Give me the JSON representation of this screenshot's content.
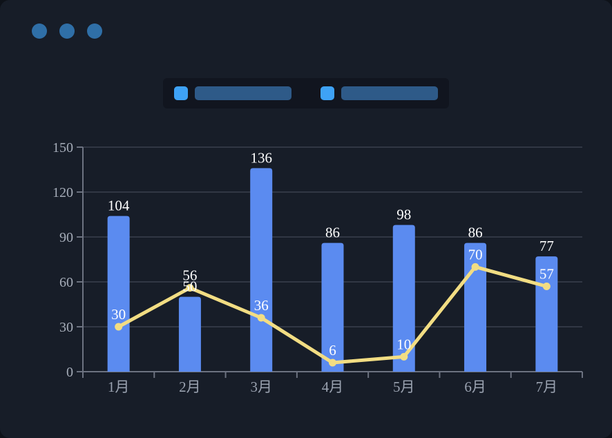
{
  "window": {
    "controls": {
      "count": 3,
      "dot_color": "#2f6fa7"
    }
  },
  "legend": {
    "items": [
      {
        "swatch_color": "#3ea2f6",
        "label": "",
        "label_redacted": true,
        "placeholder_color": "#2e5a88"
      },
      {
        "swatch_color": "#3ea2f6",
        "label": "",
        "label_redacted": true,
        "placeholder_color": "#2e5a88"
      }
    ]
  },
  "chart_data": {
    "type": "bar",
    "subtype": "bar-and-line-combo",
    "title": "",
    "xlabel": "",
    "ylabel": "",
    "categories": [
      "1月",
      "2月",
      "3月",
      "4月",
      "5月",
      "6月",
      "7月"
    ],
    "series": [
      {
        "name": "bar-series",
        "type": "bar",
        "values": [
          104,
          50,
          136,
          86,
          98,
          86,
          77
        ],
        "color": "#5b8bf0",
        "label_color": "#ffffff"
      },
      {
        "name": "line-series",
        "type": "line",
        "values": [
          30,
          56,
          36,
          6,
          10,
          70,
          57
        ],
        "color": "#f2dd83",
        "label_color": "#ffffff"
      }
    ],
    "ylim": [
      0,
      150
    ],
    "yticks": [
      0,
      30,
      60,
      90,
      120,
      150
    ],
    "grid": true,
    "legend_position": "top-center",
    "colors": {
      "grid_line": "#3a404e",
      "axis_line": "#6c7280",
      "axis_tick_label": "#a6adb9",
      "x_tick_label": "#9aa2b0",
      "background": "#171d28"
    }
  }
}
